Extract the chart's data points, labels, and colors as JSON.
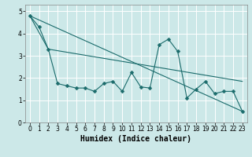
{
  "title": "",
  "xlabel": "Humidex (Indice chaleur)",
  "bg_color": "#cce8e8",
  "grid_color": "#ffffff",
  "line_color": "#1a6b6b",
  "xlim": [
    -0.5,
    23.5
  ],
  "ylim": [
    0,
    5.3
  ],
  "yticks": [
    0,
    1,
    2,
    3,
    4,
    5
  ],
  "xticks": [
    0,
    1,
    2,
    3,
    4,
    5,
    6,
    7,
    8,
    9,
    10,
    11,
    12,
    13,
    14,
    15,
    16,
    17,
    18,
    19,
    20,
    21,
    22,
    23
  ],
  "series1_x": [
    0,
    1,
    2,
    3,
    4,
    5,
    6,
    7,
    8,
    9,
    10,
    11,
    12,
    13,
    14,
    15,
    16,
    17,
    18,
    19,
    20,
    21,
    22,
    23
  ],
  "series1_y": [
    4.8,
    4.3,
    3.3,
    1.75,
    1.65,
    1.55,
    1.55,
    1.4,
    1.75,
    1.85,
    1.4,
    2.25,
    1.6,
    1.55,
    3.5,
    3.75,
    3.2,
    1.1,
    1.5,
    1.85,
    1.3,
    1.4,
    1.4,
    0.5
  ],
  "series2_x": [
    0,
    23
  ],
  "series2_y": [
    4.8,
    0.5
  ],
  "series3_x": [
    0,
    2,
    23
  ],
  "series3_y": [
    4.8,
    3.3,
    1.85
  ],
  "markersize": 2.5,
  "linewidth": 0.8,
  "xlabel_fontsize": 7,
  "tick_fontsize": 5.5
}
